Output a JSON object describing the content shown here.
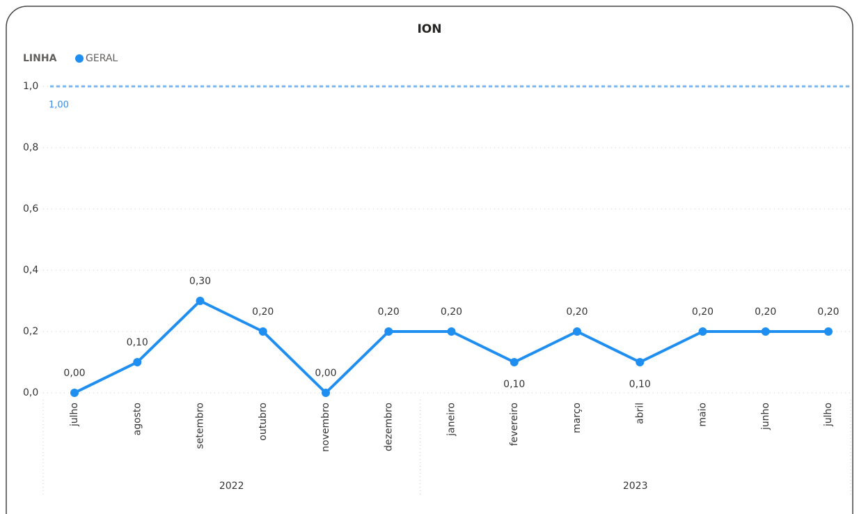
{
  "chart_data": {
    "type": "line",
    "title": "ION",
    "legend_title": "LINHA",
    "categories": [
      "julho",
      "agosto",
      "setembro",
      "outubro",
      "novembro",
      "dezembro",
      "janeiro",
      "fevereiro",
      "março",
      "abril",
      "maio",
      "junho",
      "julho"
    ],
    "x_groups": [
      {
        "label": "2022",
        "size": 6
      },
      {
        "label": "2023",
        "size": 7
      }
    ],
    "series": [
      {
        "name": "GERAL",
        "color": "#1f8ef1",
        "values": [
          0,
          0.1,
          0.3,
          0.2,
          0,
          0.2,
          0.2,
          0.1,
          0.2,
          0.1,
          0.2,
          0.2,
          0.2
        ],
        "value_labels": [
          "0,00",
          "0,10",
          "0,30",
          "0,20",
          "0,00",
          "0,20",
          "0,20",
          "0,10",
          "0,20",
          "0,10",
          "0,20",
          "0,20",
          "0,20"
        ]
      }
    ],
    "reference_line": {
      "value": 1,
      "label": "1,00",
      "color": "#7ab6f0"
    },
    "ylim": [
      0,
      1
    ],
    "yticks": [
      {
        "value": 0,
        "label": "0,0"
      },
      {
        "value": 0.2,
        "label": "0,2"
      },
      {
        "value": 0.4,
        "label": "0,4"
      },
      {
        "value": 0.6,
        "label": "0,6"
      },
      {
        "value": 0.8,
        "label": "0,8"
      },
      {
        "value": 1,
        "label": "1,0"
      }
    ],
    "grid": true
  }
}
